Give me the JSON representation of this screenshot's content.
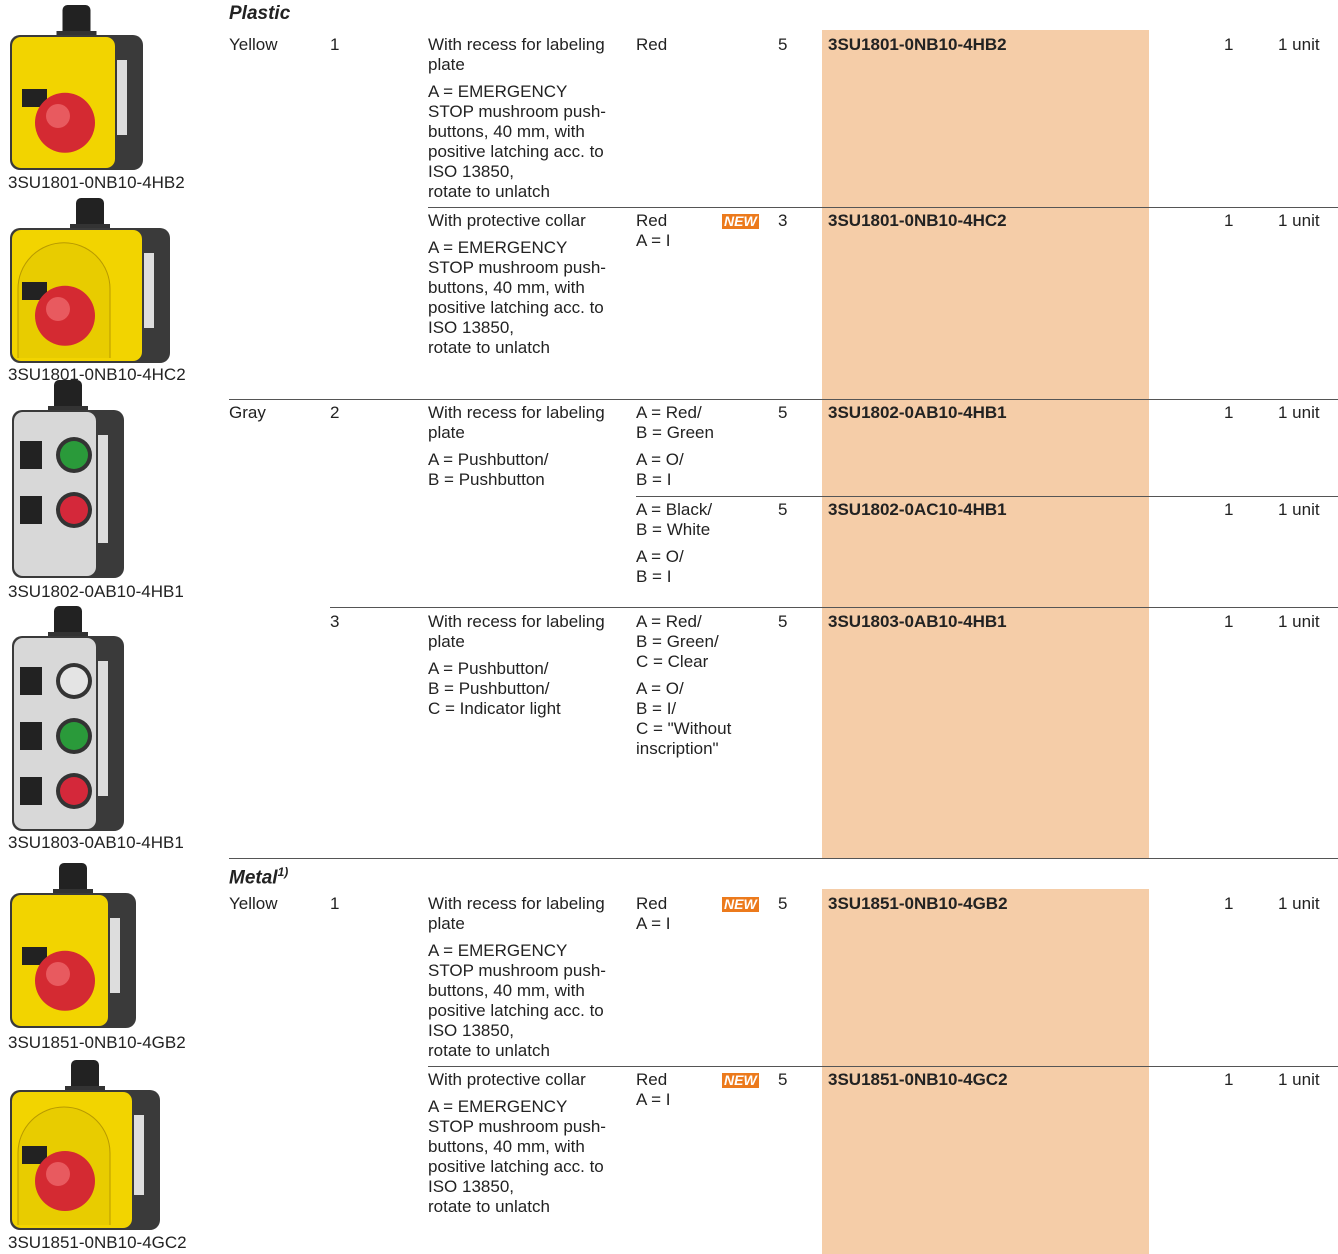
{
  "images": [
    "3SU1801-0NB10-4HB2",
    "3SU1801-0NB10-4HC2",
    "3SU1802-0AB10-4HB1",
    "3SU1803-0AB10-4HB1",
    "3SU1851-0NB10-4GB2",
    "3SU1851-0NB10-4GC2"
  ],
  "sections": [
    {
      "title": "Plastic",
      "rows": [
        {
          "color": "Yellow",
          "count": 1,
          "desc": [
            [
              "With recess for labeling",
              "plate"
            ],
            [
              "A = EMERGENCY",
              "STOP mushroom push-",
              "buttons, 40 mm, with",
              "positive latching acc. to",
              "ISO 13850,",
              "rotate to unlatch"
            ]
          ],
          "labels": [
            [
              "Red"
            ]
          ],
          "qty": 5,
          "article": "3SU1801-0NB10-4HB2",
          "pu": 1,
          "pack": "1 unit"
        },
        {
          "desc": [
            [
              "With protective collar"
            ],
            [
              "A = EMERGENCY",
              "STOP mushroom push-",
              "buttons, 40 mm, with",
              "positive latching acc. to",
              "ISO 13850,",
              "rotate to unlatch"
            ]
          ],
          "labels": [
            [
              "Red",
              "A = I"
            ]
          ],
          "new": "NEW",
          "qty": 3,
          "article": "3SU1801-0NB10-4HC2",
          "pu": 1,
          "pack": "1 unit"
        },
        {
          "color": "Gray",
          "count": 2,
          "desc": [
            [
              "With recess for labeling",
              "plate"
            ],
            [
              "A = Pushbutton/",
              "B = Pushbutton"
            ]
          ],
          "labels": [
            [
              "A = Red/",
              "B = Green"
            ],
            [
              "A = O/",
              "B = I"
            ]
          ],
          "qty": 5,
          "article": "3SU1802-0AB10-4HB1",
          "pu": 1,
          "pack": "1 unit"
        },
        {
          "labels": [
            [
              "A = Black/",
              "B = White"
            ],
            [
              "A = O/",
              "B = I"
            ]
          ],
          "qty": 5,
          "article": "3SU1802-0AC10-4HB1",
          "pu": 1,
          "pack": "1 unit"
        },
        {
          "count": 3,
          "desc": [
            [
              "With recess for labeling",
              "plate"
            ],
            [
              "A = Pushbutton/",
              "B = Pushbutton/",
              "C = Indicator light"
            ]
          ],
          "labels": [
            [
              "A = Red/",
              "B = Green/",
              "C = Clear"
            ],
            [
              "A = O/",
              "B = I/",
              "C = \"Without",
              "inscription\""
            ]
          ],
          "qty": 5,
          "article": "3SU1803-0AB10-4HB1",
          "pu": 1,
          "pack": "1 unit"
        }
      ]
    },
    {
      "title": "Metal",
      "note": "1)",
      "rows": [
        {
          "color": "Yellow",
          "count": 1,
          "desc": [
            [
              "With recess for labeling",
              "plate"
            ],
            [
              "A = EMERGENCY",
              "STOP mushroom push-",
              "buttons, 40 mm, with",
              "positive latching acc. to",
              "ISO 13850,",
              "rotate to unlatch"
            ]
          ],
          "labels": [
            [
              "Red",
              "A = I"
            ]
          ],
          "new": "NEW",
          "qty": 5,
          "article": "3SU1851-0NB10-4GB2",
          "pu": 1,
          "pack": "1 unit"
        },
        {
          "desc": [
            [
              "With protective collar"
            ],
            [
              "A = EMERGENCY",
              "STOP mushroom push-",
              "buttons, 40 mm, with",
              "positive latching acc. to",
              "ISO 13850,",
              "rotate to unlatch"
            ]
          ],
          "labels": [
            [
              "Red",
              "A = I"
            ]
          ],
          "new": "NEW",
          "qty": 5,
          "article": "3SU1851-0NB10-4GC2",
          "pu": 1,
          "pack": "1 unit"
        }
      ]
    }
  ]
}
